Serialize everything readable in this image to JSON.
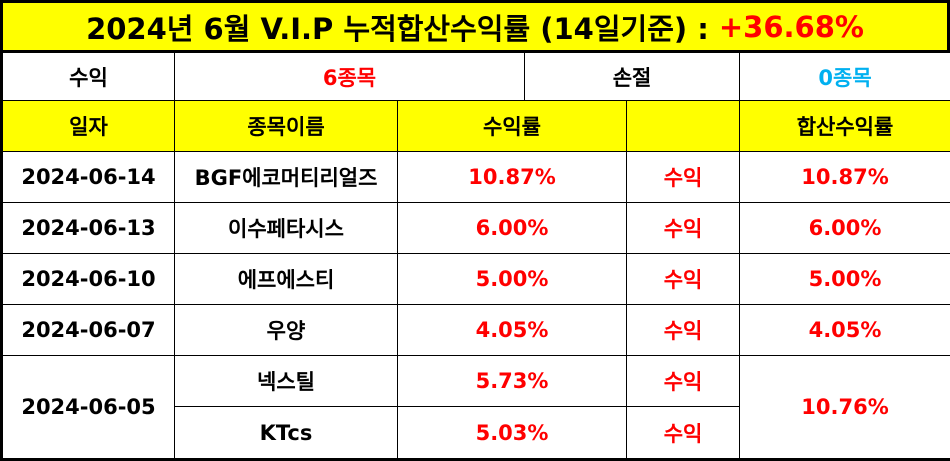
{
  "title": {
    "text": "2024년 6월 V.I.P 누적합산수익률 (14일기준) :",
    "profit": "+36.68%"
  },
  "summary": {
    "profit_label": "수익",
    "profit_value": "6종목",
    "loss_label": "손절",
    "loss_value": "0종목"
  },
  "headers": {
    "date": "일자",
    "name": "종목이름",
    "return": "수익률",
    "status": "",
    "cumulative": "합산수익률"
  },
  "rows": [
    {
      "date": "2024-06-14",
      "name": "BGF에코머티리얼즈",
      "return": "10.87%",
      "status": "수익",
      "cumulative": "10.87%"
    },
    {
      "date": "2024-06-13",
      "name": "이수페타시스",
      "return": "6.00%",
      "status": "수익",
      "cumulative": "6.00%"
    },
    {
      "date": "2024-06-10",
      "name": "에프에스티",
      "return": "5.00%",
      "status": "수익",
      "cumulative": "5.00%"
    },
    {
      "date": "2024-06-07",
      "name": "우양",
      "return": "4.05%",
      "status": "수익",
      "cumulative": "4.05%"
    },
    {
      "date": "2024-06-05",
      "name": "넥스틸",
      "return": "5.73%",
      "status": "수익",
      "cumulative": "10.76%"
    },
    {
      "date": "",
      "name": "KTcs",
      "return": "5.03%",
      "status": "수익",
      "cumulative": ""
    }
  ],
  "colors": {
    "header_bg": "#ffff00",
    "profit_text": "#ff0000",
    "loss_text": "#00b0f0"
  }
}
